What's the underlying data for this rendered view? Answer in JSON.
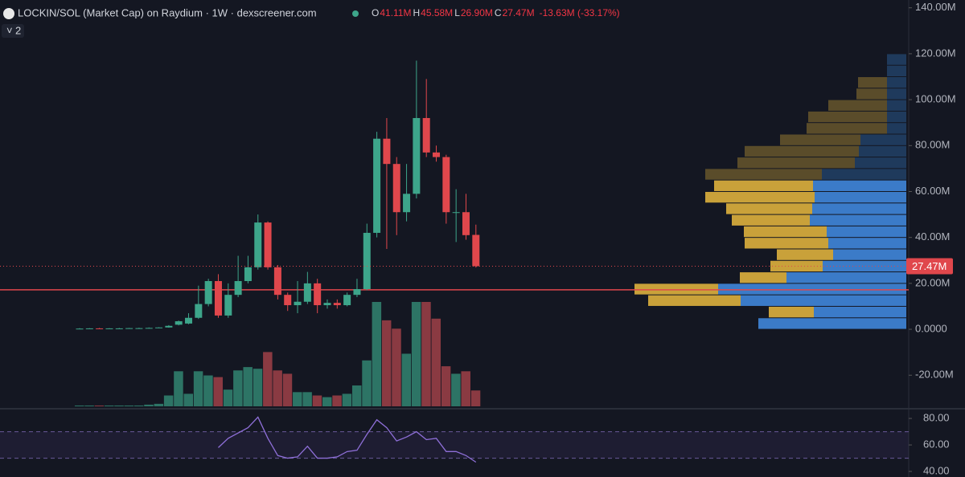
{
  "chart_data": {
    "type": "candlestick",
    "title": "LOCKIN/SOL (Market Cap) on Raydium · 1W · dexscreener.com",
    "ohlc_letters": [
      "O",
      "H",
      "L",
      "C"
    ],
    "ohlc_labels": [
      "41.11M",
      "45.58M",
      "26.90M",
      "27.47M"
    ],
    "change_label": "-13.63M (-33.17%)",
    "indicator_count": 2,
    "price_label": "27.47M",
    "ylim": [
      -33.9,
      143.4
    ],
    "yticks": [
      {
        "value": 140,
        "label": "140.00M"
      },
      {
        "value": 120,
        "label": "120.00M"
      },
      {
        "value": 100,
        "label": "100.00M"
      },
      {
        "value": 80,
        "label": "80.00M"
      },
      {
        "value": 60,
        "label": "60.00M"
      },
      {
        "value": 40,
        "label": "40.00M"
      },
      {
        "value": 20,
        "label": "20.00M"
      },
      {
        "value": 0,
        "label": "0.0000"
      },
      {
        "value": -20,
        "label": "-20.00M"
      }
    ],
    "open": [
      0.3,
      0.3,
      0.4,
      0.3,
      0.4,
      0.4,
      0.5,
      0.5,
      0.6,
      0.8,
      2,
      2.5,
      5,
      11,
      21,
      6,
      15,
      21,
      27,
      46.5,
      27,
      15,
      10.5,
      12,
      20,
      10.5,
      11.5,
      10.5,
      15,
      17.5,
      42,
      83,
      72,
      51,
      59,
      92,
      77,
      75,
      51,
      51,
      41.11
    ],
    "high": [
      0.5,
      0.5,
      0.6,
      0.5,
      0.6,
      0.6,
      0.7,
      0.8,
      0.9,
      1.8,
      3.8,
      7,
      19,
      22,
      24,
      20,
      32,
      32,
      50,
      47,
      28,
      16,
      21,
      25,
      22,
      13,
      13,
      16,
      22,
      46,
      86,
      92,
      75,
      72,
      117,
      109,
      80,
      76,
      61,
      59,
      45.58
    ],
    "low": [
      0.2,
      0.2,
      0.3,
      0.2,
      0.3,
      0.3,
      0.4,
      0.4,
      0.5,
      0.7,
      1.7,
      2.2,
      4.5,
      10,
      5,
      5,
      14,
      20,
      26,
      26,
      13,
      8,
      7,
      11,
      7,
      9,
      9,
      10,
      14,
      17,
      40,
      35,
      41,
      47,
      57,
      75,
      73,
      46,
      38,
      39,
      26.9
    ],
    "close": [
      0.3,
      0.4,
      0.3,
      0.4,
      0.4,
      0.5,
      0.5,
      0.6,
      0.8,
      1.5,
      3.5,
      5,
      11,
      21,
      6,
      15,
      21,
      27,
      46.5,
      27,
      15,
      10.5,
      12,
      20,
      10.5,
      11.5,
      10.5,
      15,
      17.5,
      42,
      83,
      72,
      51,
      59,
      92,
      77,
      75,
      51,
      51,
      41,
      27.47
    ],
    "up_color": "#3da58a",
    "down_color": "#e0474c",
    "up_volume_color": "#2d7465",
    "down_volume_color": "#8a3a42",
    "volume": [
      1,
      1,
      1,
      1,
      1,
      1,
      1,
      2,
      3,
      13,
      42,
      15,
      42,
      37,
      35,
      20,
      43,
      47,
      45,
      65,
      43,
      39,
      17,
      17,
      13,
      11,
      13,
      15,
      25,
      55,
      125,
      103,
      93,
      63,
      125,
      125,
      105,
      48,
      39,
      42,
      19
    ],
    "level_line": 17.2,
    "level_color": "#e0474c",
    "profile": {
      "bins": [
        0,
        5,
        10,
        15,
        20,
        25,
        30,
        35,
        40,
        45,
        50,
        55,
        60,
        65,
        70,
        75,
        80,
        85,
        90,
        95,
        100,
        105,
        110,
        115,
        120
      ],
      "up": [
        184,
        115,
        206,
        234,
        149,
        104,
        91,
        97,
        99,
        120,
        117,
        114,
        116,
        105,
        64,
        59,
        57,
        24,
        24,
        24,
        24,
        24,
        24,
        24
      ],
      "down": [
        0,
        56,
        115,
        104,
        58,
        65,
        70,
        104,
        103,
        97,
        107,
        136,
        123,
        145,
        146,
        142,
        100,
        100,
        98,
        73,
        38,
        36,
        0,
        0
      ],
      "up_color": "#3b7bc8",
      "down_color": "#c9a13a",
      "dim_up_color": "#1f3a5c",
      "dim_down_color": "#5a4c2a",
      "value_area": [
        0,
        65
      ]
    },
    "rsi": {
      "values": [
        null,
        null,
        null,
        null,
        null,
        null,
        null,
        null,
        null,
        null,
        null,
        null,
        null,
        null,
        58,
        65,
        69,
        73,
        81,
        65,
        52,
        50,
        51,
        59,
        50,
        50,
        51,
        55,
        56,
        68,
        79,
        73,
        63,
        66,
        70,
        64,
        65,
        55,
        55,
        52,
        47
      ],
      "ylim": [
        35.8,
        85.5
      ],
      "yticks": [
        {
          "value": 80,
          "label": "80.00"
        },
        {
          "value": 60,
          "label": "60.00"
        },
        {
          "value": 40,
          "label": "40.00"
        }
      ],
      "bands": [
        50,
        70
      ],
      "color": "#8e6fd8"
    }
  }
}
